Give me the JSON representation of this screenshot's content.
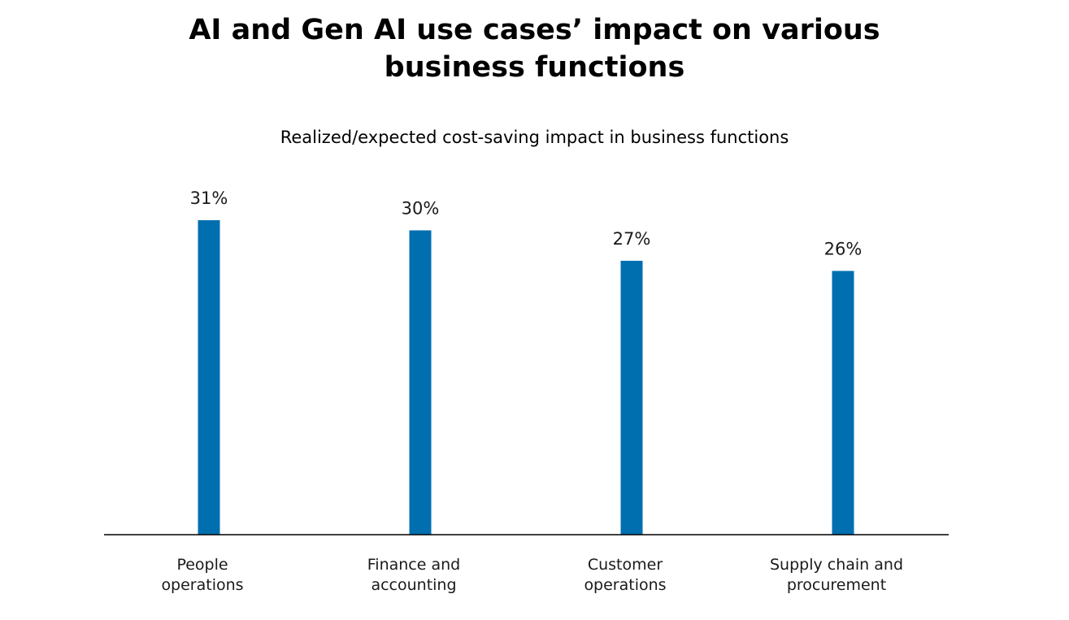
{
  "title": {
    "line1": "AI and Gen AI use cases’ impact on various",
    "line2": "business functions"
  },
  "chart_data": {
    "type": "bar",
    "title": "AI and Gen AI use cases’ impact on various business functions",
    "subtitle": "Realized/expected cost-saving impact in business functions",
    "categories": [
      [
        "People",
        "operations"
      ],
      [
        "Finance and",
        "accounting"
      ],
      [
        "Customer",
        "operations"
      ],
      [
        "Supply chain and",
        "procurement"
      ]
    ],
    "values": [
      31,
      30,
      27,
      26
    ],
    "value_labels": [
      "31%",
      "30%",
      "27%",
      "26%"
    ],
    "unit": "%",
    "ylim": [
      0,
      31
    ],
    "grid": false,
    "bar_color": "#006FB0",
    "axis_color": "#000000"
  }
}
